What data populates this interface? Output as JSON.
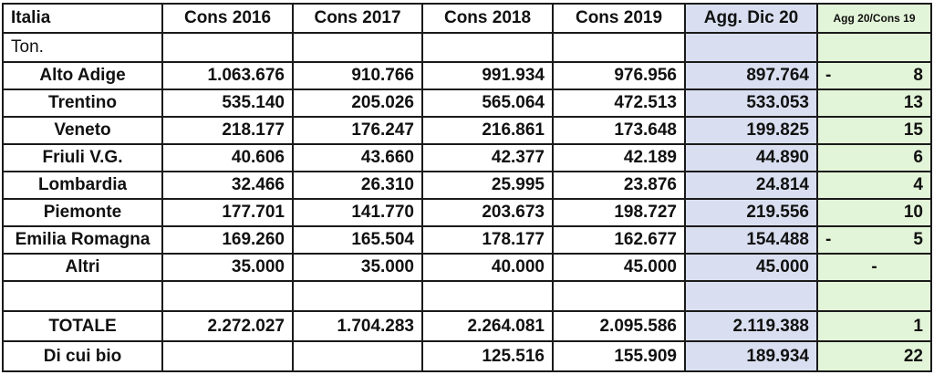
{
  "header": [
    "Italia",
    "Cons 2016",
    "Cons 2017",
    "Cons 2018",
    "Cons 2019",
    "Agg. Dic 20",
    "Agg 20/Cons 19"
  ],
  "unit": "Ton.",
  "rows": [
    {
      "region": "Alto Adige",
      "v": [
        "1.063.676",
        "910.766",
        "991.934",
        "976.956",
        "897.764"
      ],
      "sign": "-",
      "pct": "8"
    },
    {
      "region": "Trentino",
      "v": [
        "535.140",
        "205.026",
        "565.064",
        "472.513",
        "533.053"
      ],
      "sign": "",
      "pct": "13"
    },
    {
      "region": "Veneto",
      "v": [
        "218.177",
        "176.247",
        "216.861",
        "173.648",
        "199.825"
      ],
      "sign": "",
      "pct": "15"
    },
    {
      "region": "Friuli V.G.",
      "v": [
        "40.606",
        "43.660",
        "42.377",
        "42.189",
        "44.890"
      ],
      "sign": "",
      "pct": "6"
    },
    {
      "region": "Lombardia",
      "v": [
        "32.466",
        "26.310",
        "25.995",
        "23.876",
        "24.814"
      ],
      "sign": "",
      "pct": "4"
    },
    {
      "region": "Piemonte",
      "v": [
        "177.701",
        "141.770",
        "203.673",
        "198.727",
        "219.556"
      ],
      "sign": "",
      "pct": "10"
    },
    {
      "region": "Emilia Romagna",
      "v": [
        "169.260",
        "165.504",
        "178.177",
        "162.677",
        "154.488"
      ],
      "sign": "-",
      "pct": "5"
    },
    {
      "region": "Altri",
      "v": [
        "35.000",
        "35.000",
        "40.000",
        "45.000",
        "45.000"
      ],
      "sign": "",
      "pct": "-"
    }
  ],
  "totals": [
    {
      "region": "TOTALE",
      "v": [
        "2.272.027",
        "1.704.283",
        "2.264.081",
        "2.095.586",
        "2.119.388"
      ],
      "sign": "",
      "pct": "1"
    },
    {
      "region": "Di cui bio",
      "v": [
        "",
        "",
        "125.516",
        "155.909",
        "189.934"
      ],
      "sign": "",
      "pct": "22"
    }
  ],
  "colors": {
    "agg_column": "#d9dff0",
    "delta_column": "#e3f5d8"
  }
}
